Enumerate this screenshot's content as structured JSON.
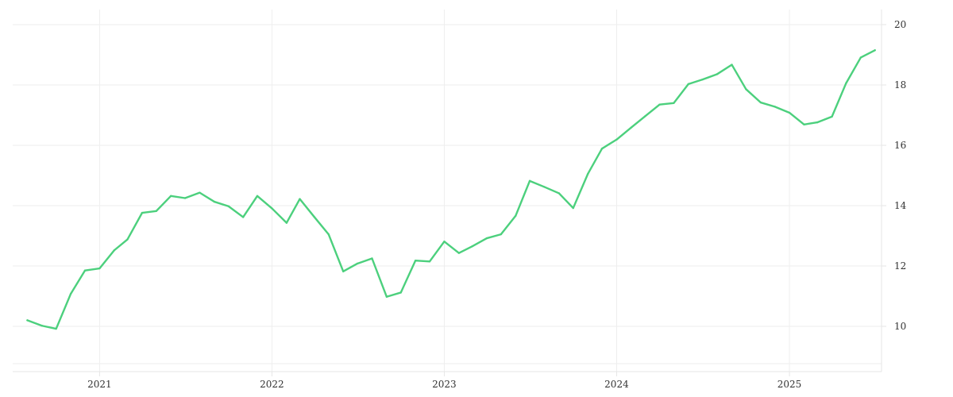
{
  "chart_data": {
    "type": "line",
    "title": "",
    "xlabel": "",
    "ylabel": "",
    "grid": true,
    "legend": "none",
    "colors": {
      "series": "#4cd07d",
      "grid": "#eeeeee",
      "text": "#333333"
    },
    "xlim": [
      "2020-07-01",
      "2025-07-15"
    ],
    "ylim": [
      8.5,
      20.5
    ],
    "y_ticks": [
      10,
      12,
      14,
      16,
      18,
      20
    ],
    "x_ticks": [
      {
        "label": "2021",
        "date": "2021-01-01"
      },
      {
        "label": "2022",
        "date": "2022-01-01"
      },
      {
        "label": "2023",
        "date": "2023-01-01"
      },
      {
        "label": "2024",
        "date": "2024-01-01"
      },
      {
        "label": "2025",
        "date": "2025-01-01"
      }
    ],
    "series": [
      {
        "x": [
          "2020-08-01",
          "2020-09-01",
          "2020-10-01",
          "2020-11-01",
          "2020-12-01",
          "2021-01-01",
          "2021-02-01",
          "2021-03-01",
          "2021-04-01",
          "2021-05-01",
          "2021-06-01",
          "2021-07-01",
          "2021-08-01",
          "2021-09-01",
          "2021-10-01",
          "2021-11-01",
          "2021-12-01",
          "2022-01-01",
          "2022-02-01",
          "2022-03-01",
          "2022-04-01",
          "2022-05-01",
          "2022-06-01",
          "2022-07-01",
          "2022-08-01",
          "2022-09-01",
          "2022-10-01",
          "2022-11-01",
          "2022-12-01",
          "2023-01-01",
          "2023-02-01",
          "2023-03-01",
          "2023-04-01",
          "2023-05-01",
          "2023-06-01",
          "2023-07-01",
          "2023-08-01",
          "2023-09-01",
          "2023-10-01",
          "2023-11-01",
          "2023-12-01",
          "2024-01-01",
          "2024-02-01",
          "2024-03-01",
          "2024-04-01",
          "2024-05-01",
          "2024-06-01",
          "2024-07-01",
          "2024-08-01",
          "2024-09-01",
          "2024-10-01",
          "2024-11-01",
          "2024-12-01",
          "2025-01-01",
          "2025-02-01",
          "2025-03-01",
          "2025-04-01",
          "2025-05-01",
          "2025-06-01",
          "2025-07-01"
        ],
        "values": [
          10.2,
          10.02,
          9.92,
          11.08,
          11.85,
          11.92,
          12.52,
          12.88,
          13.76,
          13.82,
          14.32,
          14.25,
          14.43,
          14.13,
          13.98,
          13.62,
          14.32,
          13.91,
          13.43,
          14.22,
          13.62,
          13.05,
          11.82,
          12.08,
          12.25,
          10.98,
          11.12,
          12.18,
          12.15,
          12.81,
          12.43,
          12.65,
          12.92,
          13.05,
          13.66,
          14.82,
          14.62,
          14.41,
          13.92,
          15.05,
          15.89,
          16.19,
          16.59,
          16.96,
          17.35,
          17.4,
          18.03,
          18.18,
          18.36,
          18.67,
          17.86,
          17.42,
          17.28,
          17.08,
          16.69,
          16.76,
          16.95,
          18.06,
          18.91,
          19.15
        ]
      }
    ]
  }
}
